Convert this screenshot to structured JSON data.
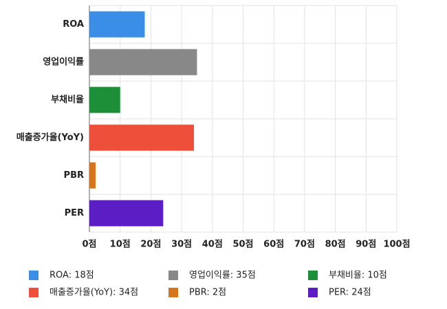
{
  "chart_data": {
    "type": "hbar",
    "categories": [
      "ROA",
      "영업이익률",
      "부채비율",
      "매출증가율(YoY)",
      "PBR",
      "PER"
    ],
    "values": [
      18,
      35,
      10,
      34,
      2,
      24
    ],
    "colors": [
      "#3a8ee6",
      "#888888",
      "#1c8f38",
      "#ee4f3a",
      "#d6761c",
      "#5a1ec4"
    ],
    "legend": [
      "ROA: 18점",
      "영업이익률: 35점",
      "부채비율: 10점",
      "매출증가율(YoY): 34점",
      "PBR: 2점",
      "PER: 24점"
    ],
    "xlim": [
      0,
      100
    ],
    "xticks": [
      {
        "value": 0,
        "label": "0점"
      },
      {
        "value": 10,
        "label": "10점"
      },
      {
        "value": 20,
        "label": "20점"
      },
      {
        "value": 30,
        "label": "30점"
      },
      {
        "value": 40,
        "label": "40점"
      },
      {
        "value": 50,
        "label": "50점"
      },
      {
        "value": 60,
        "label": "60점"
      },
      {
        "value": 70,
        "label": "70점"
      },
      {
        "value": 80,
        "label": "80점"
      },
      {
        "value": 90,
        "label": "90점"
      },
      {
        "value": 100,
        "label": "100점"
      }
    ],
    "grid": true
  }
}
